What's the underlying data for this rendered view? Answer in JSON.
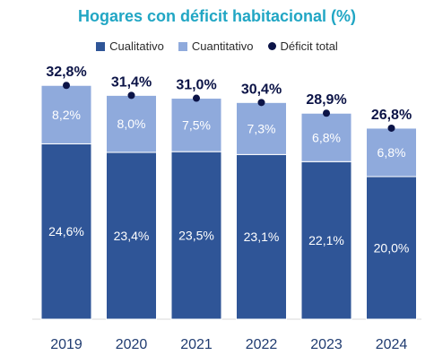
{
  "chart_data": {
    "type": "bar",
    "stacked": true,
    "title": "Hogares con déficit habitacional (%)",
    "categories": [
      "2019",
      "2020",
      "2021",
      "2022",
      "2023",
      "2024"
    ],
    "series": [
      {
        "name": "Cualitativo",
        "values": [
          24.6,
          23.4,
          23.5,
          23.1,
          22.1,
          20.0
        ],
        "labels": [
          "24,6%",
          "23,4%",
          "23,5%",
          "23,1%",
          "22,1%",
          "20,0%"
        ],
        "color": "#2f5597"
      },
      {
        "name": "Cuantitativo",
        "values": [
          8.2,
          8.0,
          7.5,
          7.3,
          6.8,
          6.8
        ],
        "labels": [
          "8,2%",
          "8,0%",
          "7,5%",
          "7,3%",
          "6,8%",
          "6,8%"
        ],
        "color": "#8faadc"
      }
    ],
    "total": {
      "name": "Déficit total",
      "values": [
        32.8,
        31.4,
        31.0,
        30.4,
        28.9,
        26.8
      ],
      "labels": [
        "32,8%",
        "31,4%",
        "31,0%",
        "30,4%",
        "28,9%",
        "26,8%"
      ],
      "color": "#0c1447"
    },
    "ylim": [
      0,
      35
    ],
    "legend_position": "top",
    "grid": false
  }
}
